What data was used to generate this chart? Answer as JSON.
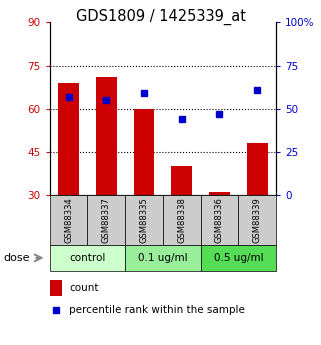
{
  "title": "GDS1809 / 1425339_at",
  "samples": [
    "GSM88334",
    "GSM88337",
    "GSM88335",
    "GSM88338",
    "GSM88336",
    "GSM88339"
  ],
  "bar_values": [
    69,
    71,
    60,
    40,
    31,
    48
  ],
  "percentile_values": [
    57,
    55,
    59,
    44,
    47,
    61
  ],
  "bar_bottom": 30,
  "ylim_left": [
    30,
    90
  ],
  "ylim_right": [
    0,
    100
  ],
  "yticks_left": [
    30,
    45,
    60,
    75,
    90
  ],
  "yticks_right": [
    0,
    25,
    50,
    75,
    100
  ],
  "bar_color": "#cc0000",
  "percentile_color": "#0000cc",
  "bar_width": 0.55,
  "groups": [
    {
      "label": "control",
      "indices": [
        0,
        1
      ],
      "color": "#ccffcc"
    },
    {
      "label": "0.1 ug/ml",
      "indices": [
        2,
        3
      ],
      "color": "#99ee99"
    },
    {
      "label": "0.5 ug/ml",
      "indices": [
        4,
        5
      ],
      "color": "#55dd55"
    }
  ],
  "dose_label": "dose",
  "legend_count": "count",
  "legend_percentile": "percentile rank within the sample",
  "left_tick_color": "#cc0000",
  "right_tick_color": "#0000cc",
  "sample_bg_color": "#cccccc",
  "fig_width": 3.21,
  "fig_height": 3.45,
  "dpi": 100
}
